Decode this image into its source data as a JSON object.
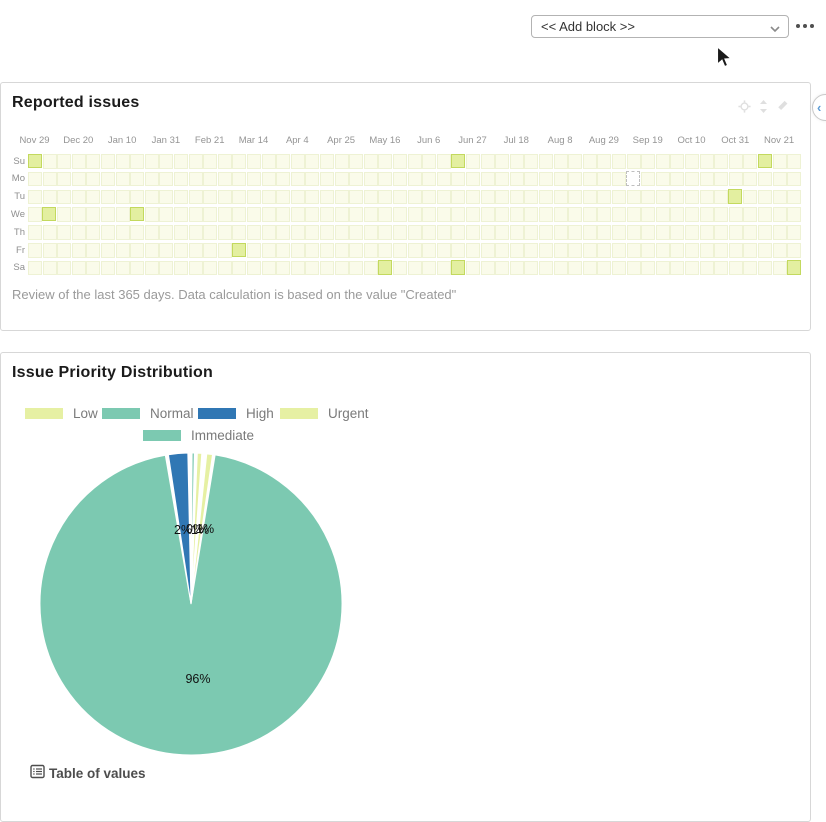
{
  "topbar": {
    "add_block_placeholder": "<< Add block >>",
    "more_menu_icon": "ellipsis-icon"
  },
  "sidebar_toggle": {
    "chevron": "‹"
  },
  "panels": {
    "reported_issues": {
      "title": "Reported issues",
      "note": "Review of the last 365 days. Data calculation is based on the value \"Created\"",
      "hover_icons": [
        "gear-icon",
        "move-icon",
        "edit-icon"
      ],
      "chart_data": {
        "type": "heatmap",
        "title": "Reported issues",
        "row_labels": [
          "Su",
          "Mo",
          "Tu",
          "We",
          "Th",
          "Fr",
          "Sa"
        ],
        "col_labels": [
          "Nov 29",
          "Dec 20",
          "Jan 10",
          "Jan 31",
          "Feb 21",
          "Mar 14",
          "Apr 4",
          "Apr 25",
          "May 16",
          "Jun 6",
          "Jun 27",
          "Jul 18",
          "Aug 8",
          "Aug 29",
          "Sep 19",
          "Oct 10",
          "Oct 31",
          "Nov 21"
        ],
        "col_label_step": 3,
        "num_cols": 53,
        "num_rows": 7,
        "marked_cells": [
          {
            "row": 0,
            "col": 0
          },
          {
            "row": 0,
            "col": 29
          },
          {
            "row": 0,
            "col": 50
          },
          {
            "row": 2,
            "col": 48
          },
          {
            "row": 3,
            "col": 1
          },
          {
            "row": 3,
            "col": 7
          },
          {
            "row": 5,
            "col": 14
          },
          {
            "row": 6,
            "col": 24
          },
          {
            "row": 6,
            "col": 29
          },
          {
            "row": 6,
            "col": 52
          }
        ],
        "today_cell": {
          "row": 1,
          "col": 41
        },
        "colors": {
          "base": "#fafbea",
          "base_border": "#eef2d4",
          "marked": "#e3efa0",
          "marked_border": "#c3d95e",
          "today": "#ffffff",
          "today_border": "#bfbfbf"
        }
      }
    },
    "priority_distribution": {
      "title": "Issue Priority Distribution",
      "table_toggle_label": "Table of values",
      "chart_data": {
        "type": "pie",
        "title": "Issue Priority Distribution",
        "legend_position": "top",
        "slices": [
          {
            "label": "Low",
            "pct": 1,
            "color": "#e6f0a3"
          },
          {
            "label": "Normal",
            "pct": 96,
            "color": "#7cc9b1"
          },
          {
            "label": "High",
            "pct": 2,
            "color": "#3077b4"
          },
          {
            "label": "Urgent",
            "pct": 1,
            "color": "#e6f0a3"
          },
          {
            "label": "Immediate",
            "pct": 0,
            "color": "#7cc9b1"
          }
        ],
        "draw_segments": [
          {
            "series": "Normal",
            "color": "#7cc9b1",
            "start_deg": 9.2,
            "end_deg": 350.2
          },
          {
            "series": "High",
            "color": "#3077b4",
            "start_deg": 351.4,
            "end_deg": 358.8
          },
          {
            "series": "Immediate",
            "color": "#7cc9b1",
            "start_deg": 0.4,
            "end_deg": 1.3
          },
          {
            "series": "Urgent",
            "color": "#e6f0a3",
            "start_deg": 2.4,
            "end_deg": 4.1
          },
          {
            "series": "Low",
            "color": "#e6f0a3",
            "start_deg": 6.0,
            "end_deg": 8.2
          }
        ],
        "percent_labels": [
          {
            "text": "2%",
            "x": 139,
            "y": 86,
            "anchor": "start"
          },
          {
            "text": "0%",
            "x": 151,
            "y": 85,
            "anchor": "start"
          },
          {
            "text": "1%",
            "x": 156,
            "y": 86,
            "anchor": "start"
          },
          {
            "text": "1%",
            "x": 161,
            "y": 85,
            "anchor": "start"
          },
          {
            "text": "96%",
            "x": 163,
            "y": 235,
            "anchor": "middle"
          }
        ]
      }
    }
  }
}
